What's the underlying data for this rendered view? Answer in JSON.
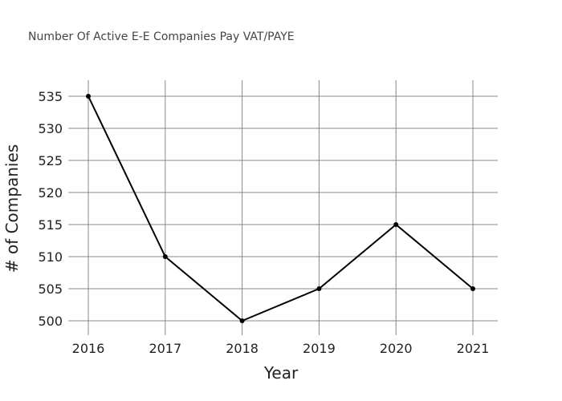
{
  "chart_data": {
    "type": "line",
    "title": "Number Of Active E-E Companies Pay VAT/PAYE",
    "xlabel": "Year",
    "ylabel": "# of Companies",
    "categories": [
      "2016",
      "2017",
      "2018",
      "2019",
      "2020",
      "2021"
    ],
    "series": [
      {
        "values": [
          535,
          510,
          500,
          505,
          515,
          505
        ]
      }
    ],
    "yticks": [
      500,
      505,
      510,
      515,
      520,
      525,
      530,
      535
    ],
    "ylim": [
      500,
      535
    ],
    "grid": true,
    "legend": "none",
    "line_color": "#000000",
    "grid_color": "#888888"
  }
}
